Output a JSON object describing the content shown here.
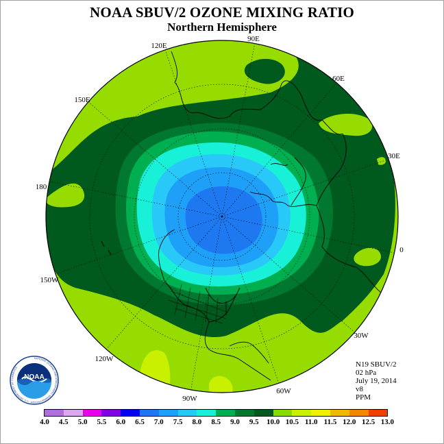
{
  "title": "NOAA SBUV/2 OZONE MIXING RATIO",
  "subtitle": "Northern Hemisphere",
  "info": {
    "satellite": "N19 SBUV/2",
    "level": "02 hPa",
    "date": "July 19, 2014",
    "version": "v8",
    "units": "PPM"
  },
  "longitude_labels": [
    "90E",
    "60E",
    "30E",
    "0",
    "30W",
    "60W",
    "90W",
    "120W",
    "150W",
    "180",
    "150E",
    "120E"
  ],
  "logo": {
    "text": "NOAA",
    "ring_text": "NATIONAL OCEANIC AND ATMOSPHERIC ADMINISTRATION · U.S. DEPARTMENT OF COMMERCE"
  },
  "colorbar": {
    "ticks": [
      "4.0",
      "4.5",
      "5.0",
      "5.5",
      "6.0",
      "6.5",
      "7.0",
      "7.5",
      "8.0",
      "8.5",
      "9.0",
      "9.5",
      "10.0",
      "10.5",
      "11.0",
      "11.5",
      "12.0",
      "12.5",
      "13.0"
    ],
    "colors": [
      "#b06ee0",
      "#dca8f0",
      "#e800e8",
      "#8000e0",
      "#0000f0",
      "#1e78f0",
      "#1ea0f8",
      "#28c8f8",
      "#18f0d8",
      "#00b050",
      "#007830",
      "#005a1e",
      "#88dc00",
      "#c8f000",
      "#f0f000",
      "#f0b800",
      "#f08800",
      "#f04000",
      "#e00000",
      "#a0522d"
    ]
  },
  "colors": {
    "background": "#ffffff",
    "outer_green": "#96dc00",
    "dark_green": "#005a1e",
    "mid_green": "#007830",
    "green_85": "#00b050",
    "cyan": "#18f0d8",
    "light_blue": "#28c8f8",
    "blue_70": "#1ea0f8",
    "blue_65": "#1e78f0",
    "yellow_green": "#c8f000"
  }
}
